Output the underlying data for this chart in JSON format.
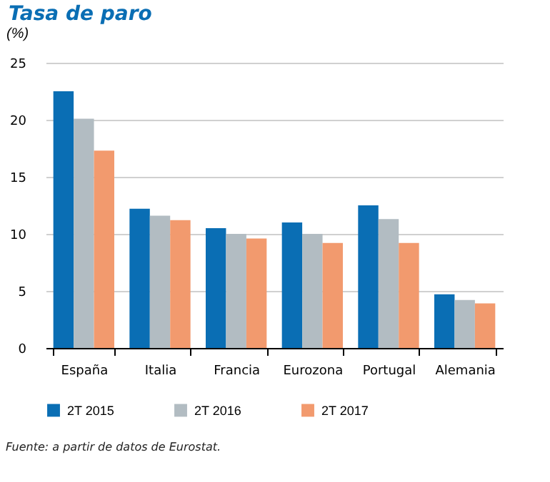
{
  "chart_data": {
    "type": "bar",
    "title": "Tasa de paro",
    "ylabel": "(%)",
    "categories": [
      "España",
      "Italia",
      "Francia",
      "Eurozona",
      "Portugal",
      "Alemania"
    ],
    "series": [
      {
        "name": "2T 2015",
        "color": "#0a6eb4",
        "values": [
          22.5,
          12.2,
          10.5,
          11.0,
          12.5,
          4.7
        ]
      },
      {
        "name": "2T 2016",
        "color": "#b2bcc2",
        "values": [
          20.1,
          11.6,
          10.0,
          10.0,
          11.3,
          4.2
        ]
      },
      {
        "name": "2T 2017",
        "color": "#f29a6e",
        "values": [
          17.3,
          11.2,
          9.6,
          9.2,
          9.2,
          3.9
        ]
      }
    ],
    "ylim": [
      0,
      25
    ],
    "yticks": [
      0,
      5,
      10,
      15,
      20,
      25
    ],
    "grid": "y",
    "legend": "bottom",
    "annotations": [
      "Fuente: a partir de datos de Eurostat."
    ]
  }
}
